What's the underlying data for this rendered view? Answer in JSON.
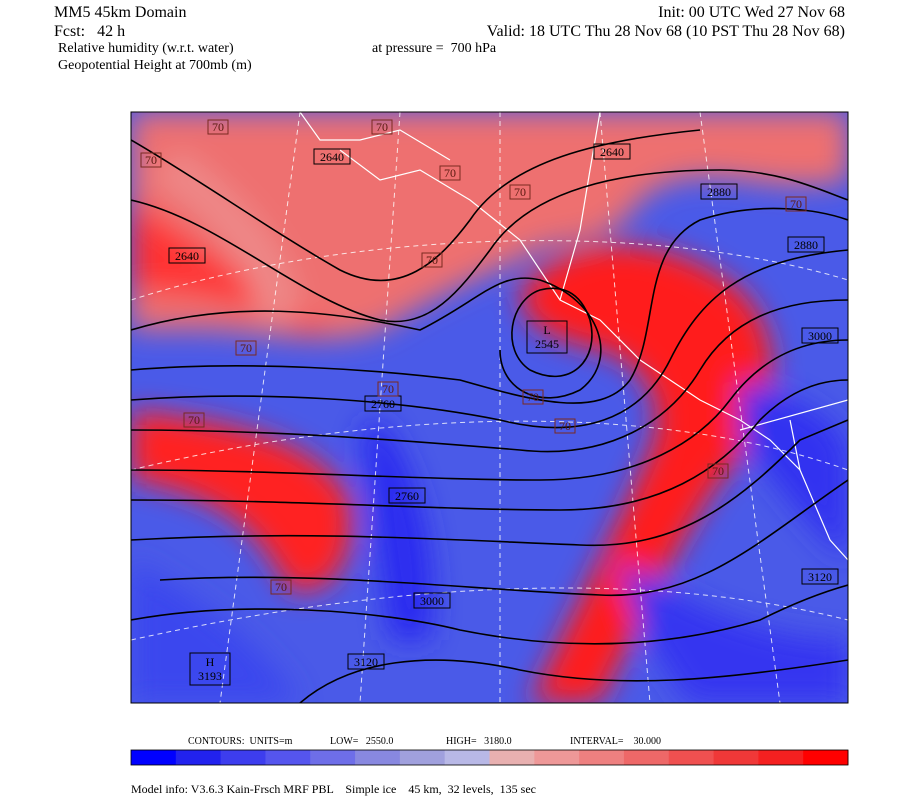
{
  "header": {
    "domain": "MM5 45km Domain",
    "init": "Init: 00 UTC Wed 27 Nov 68",
    "fcst": "Fcst:   42 h",
    "valid": "Valid: 18 UTC Thu 28 Nov 68 (10 PST Thu 28 Nov 68)",
    "field1": "Relative humidity (w.r.t. water)",
    "pressure": "at pressure =  700 hPa",
    "field2": "Geopotential Height at 700mb (m)"
  },
  "map": {
    "height_labels": [
      "2640",
      "2640",
      "2640",
      "2760",
      "2760",
      "2880",
      "2880",
      "3000",
      "3000",
      "3120",
      "3120"
    ],
    "rh_labels": [
      "70",
      "70",
      "70",
      "70",
      "70",
      "70",
      "70",
      "70",
      "70",
      "70",
      "70",
      "70",
      "70",
      "70"
    ],
    "centers": [
      {
        "type": "L",
        "value": "2545"
      },
      {
        "type": "H",
        "value": "3193"
      }
    ]
  },
  "contour_info": {
    "units": "CONTOURS:  UNITS=m",
    "low": "LOW=   2550.0",
    "high": "HIGH=   3180.0",
    "interval": "INTERVAL=    30.000"
  },
  "colorbar": {
    "colors": [
      "#0000ff",
      "#2222ee",
      "#3d3dee",
      "#5555ee",
      "#6e6ee8",
      "#8888e0",
      "#a0a0dd",
      "#b8b8e6",
      "#e8b0b0",
      "#ee9898",
      "#ee8080",
      "#ee6868",
      "#f05050",
      "#f03838",
      "#f52020",
      "#ff0000"
    ]
  },
  "footer": "Model info: V3.6.3 Kain-Frsch MRF PBL    Simple ice    45 km,  32 levels,  135 sec"
}
